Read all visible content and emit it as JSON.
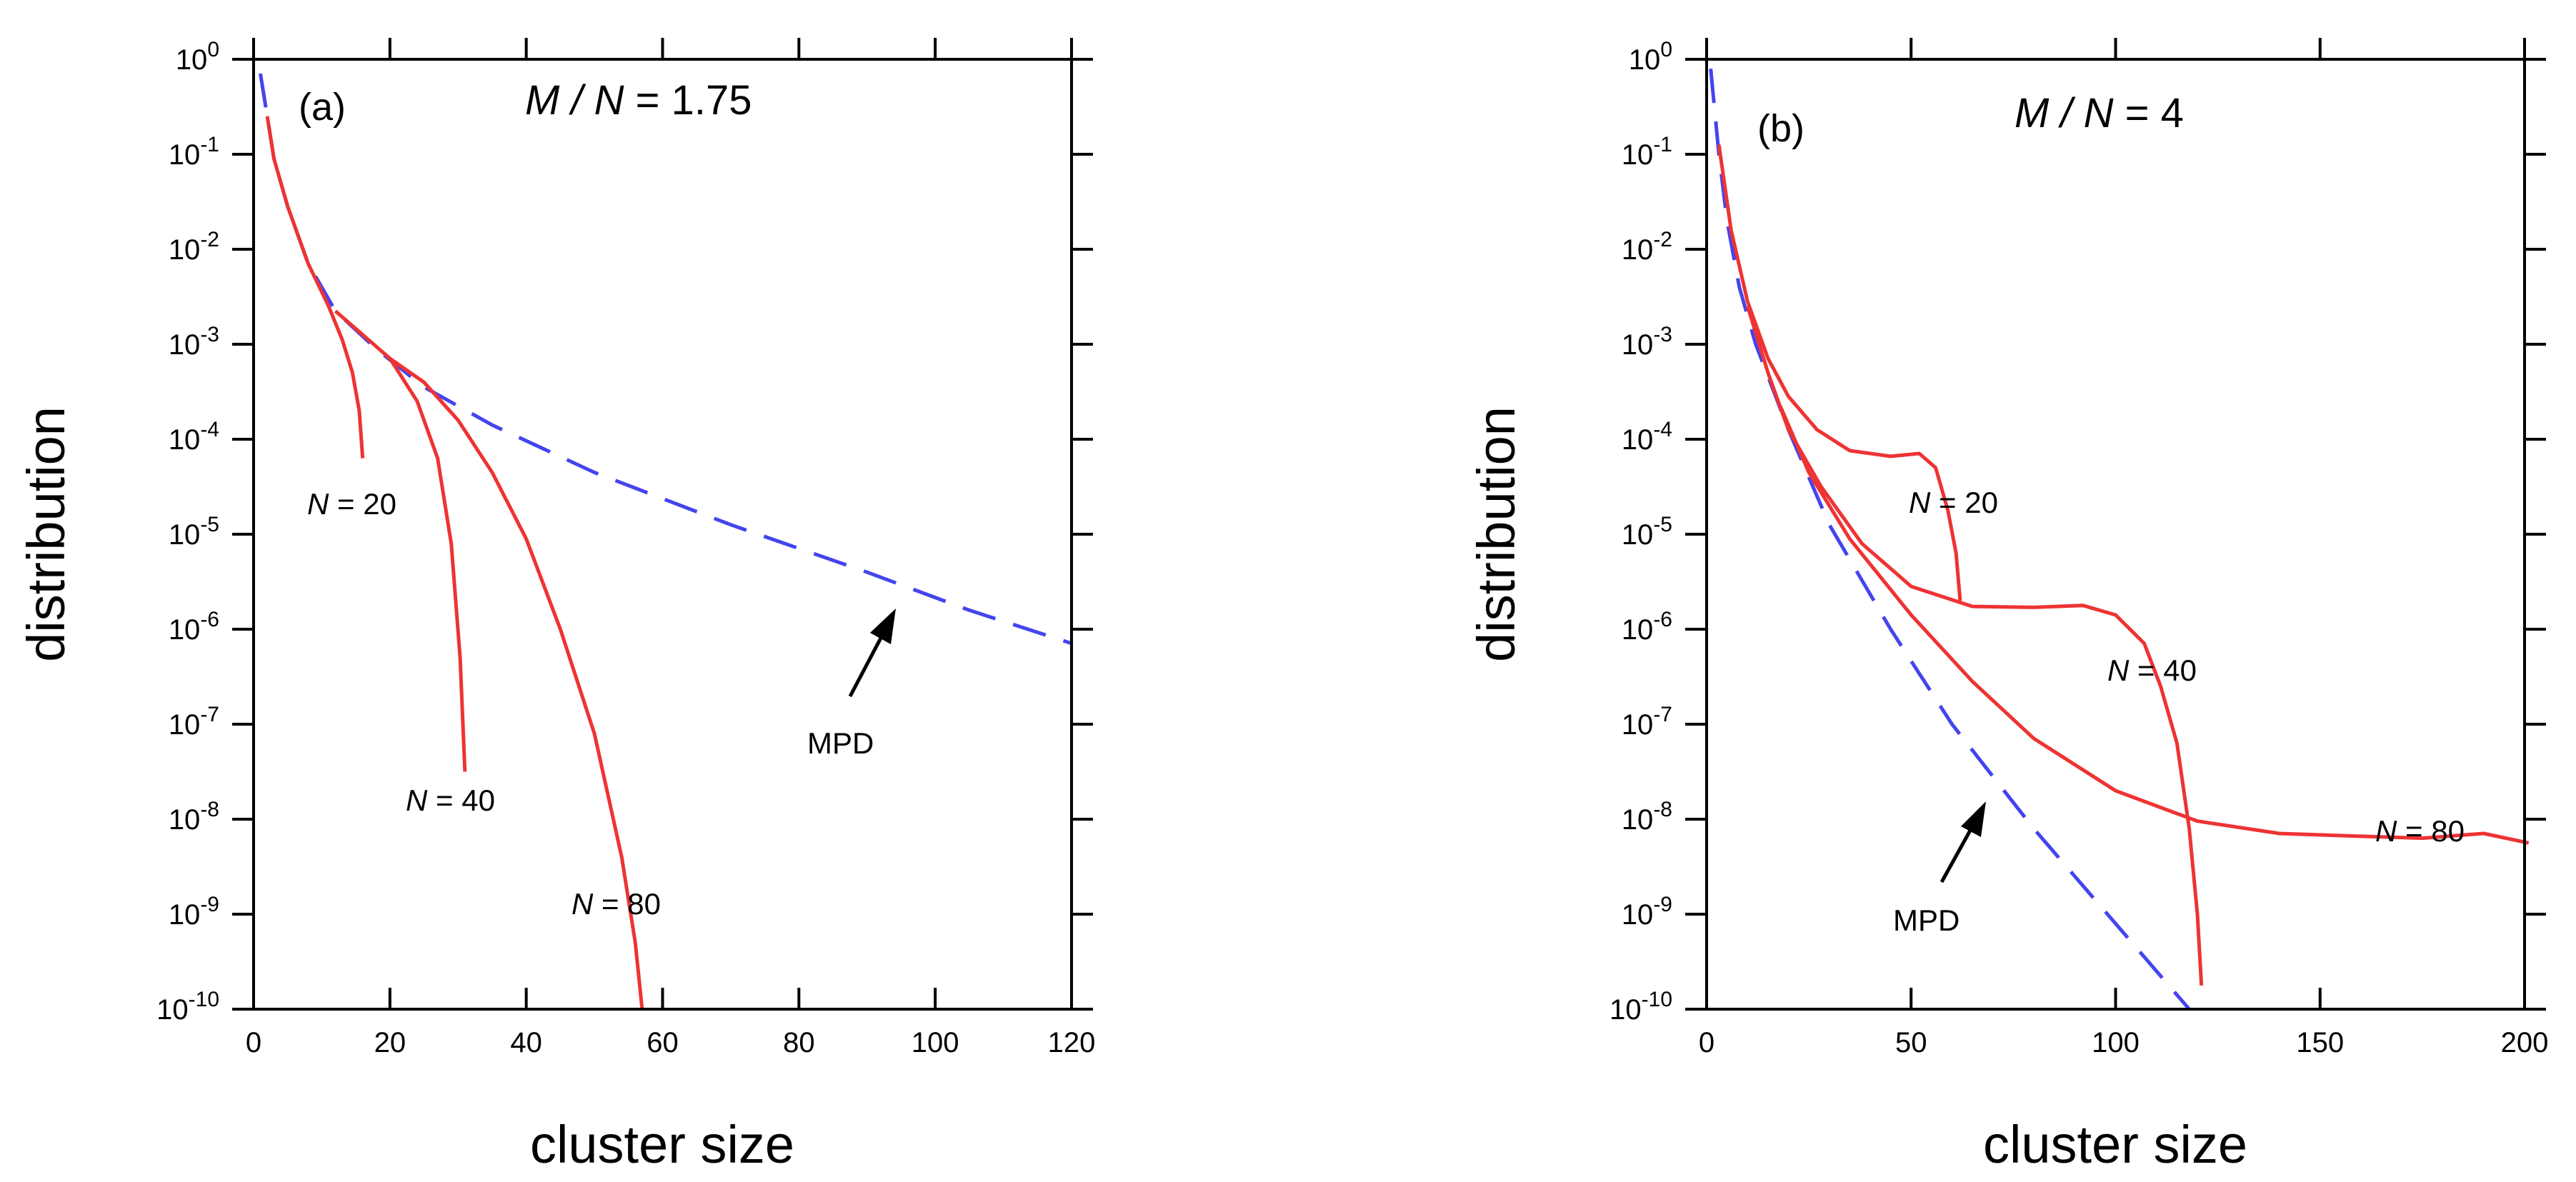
{
  "chart_data": [
    {
      "type": "line",
      "panel_label": "(a)",
      "title": {
        "var": "M / N",
        "eq": " = ",
        "value": "1.75"
      },
      "xlabel": "cluster size",
      "ylabel": "distribution",
      "xlim": [
        0,
        120
      ],
      "ylim_log10": [
        -10,
        0
      ],
      "y_scale": "log",
      "xticks": [
        0,
        20,
        40,
        60,
        80,
        100,
        120
      ],
      "xtick_labels": [
        "0",
        "20",
        "40",
        "60",
        "80",
        "100",
        "120"
      ],
      "yticks_exp": [
        0,
        -1,
        -2,
        -3,
        -4,
        -5,
        -6,
        -7,
        -8,
        -9,
        -10
      ],
      "ytick_labels": [
        {
          "base": "10",
          "exp": "0"
        },
        {
          "base": "10",
          "exp": "-1"
        },
        {
          "base": "10",
          "exp": "-2"
        },
        {
          "base": "10",
          "exp": "-3"
        },
        {
          "base": "10",
          "exp": "-4"
        },
        {
          "base": "10",
          "exp": "-5"
        },
        {
          "base": "10",
          "exp": "-6"
        },
        {
          "base": "10",
          "exp": "-7"
        },
        {
          "base": "10",
          "exp": "-8"
        },
        {
          "base": "10",
          "exp": "-9"
        },
        {
          "base": "10",
          "exp": "-10"
        }
      ],
      "series": [
        {
          "name": "MPD",
          "color": "#4444ee",
          "dashed": true,
          "points": [
            [
              1,
              -0.15
            ],
            [
              2,
              -0.6
            ],
            [
              3,
              -1.05
            ],
            [
              5,
              -1.55
            ],
            [
              8,
              -2.15
            ],
            [
              12,
              -2.65
            ],
            [
              18,
              -3.05
            ],
            [
              25,
              -3.45
            ],
            [
              35,
              -3.85
            ],
            [
              50,
              -4.35
            ],
            [
              70,
              -4.9
            ],
            [
              90,
              -5.4
            ],
            [
              105,
              -5.8
            ],
            [
              120,
              -6.15
            ]
          ]
        },
        {
          "name": "N = 20",
          "color": "#ee3333",
          "dashed": false,
          "points": [
            [
              2,
              -0.6
            ],
            [
              3,
              -1.05
            ],
            [
              5,
              -1.55
            ],
            [
              8,
              -2.15
            ],
            [
              11,
              -2.6
            ],
            [
              13,
              -2.95
            ],
            [
              14.5,
              -3.3
            ],
            [
              15.5,
              -3.7
            ],
            [
              16,
              -4.2
            ]
          ]
        },
        {
          "name": "N = 40",
          "color": "#ee3333",
          "dashed": false,
          "points": [
            [
              12,
              -2.65
            ],
            [
              16,
              -2.9
            ],
            [
              20,
              -3.15
            ],
            [
              24,
              -3.6
            ],
            [
              27,
              -4.2
            ],
            [
              29,
              -5.1
            ],
            [
              30.3,
              -6.3
            ],
            [
              31,
              -7.5
            ]
          ]
        },
        {
          "name": "N = 80",
          "color": "#ee3333",
          "dashed": false,
          "points": [
            [
              20,
              -3.15
            ],
            [
              25,
              -3.4
            ],
            [
              30,
              -3.8
            ],
            [
              35,
              -4.35
            ],
            [
              40,
              -5.05
            ],
            [
              45,
              -6.0
            ],
            [
              50,
              -7.1
            ],
            [
              54,
              -8.4
            ],
            [
              56,
              -9.3
            ],
            [
              57,
              -10.0
            ]
          ]
        }
      ],
      "annotations": [
        {
          "text_it": "N",
          "text_rm": " = 20"
        },
        {
          "text_it": "N",
          "text_rm": " = 40"
        },
        {
          "text_it": "N",
          "text_rm": " = 80"
        },
        {
          "text_rm": "MPD"
        }
      ]
    },
    {
      "type": "line",
      "panel_label": "(b)",
      "title": {
        "var": "M / N",
        "eq": " = ",
        "value": "4"
      },
      "xlabel": "cluster size",
      "ylabel": "distribution",
      "xlim": [
        0,
        200
      ],
      "ylim_log10": [
        -10,
        0
      ],
      "y_scale": "log",
      "xticks": [
        0,
        50,
        100,
        150,
        200
      ],
      "xtick_labels": [
        "0",
        "50",
        "100",
        "150",
        "200"
      ],
      "yticks_exp": [
        0,
        -1,
        -2,
        -3,
        -4,
        -5,
        -6,
        -7,
        -8,
        -9,
        -10
      ],
      "ytick_labels": [
        {
          "base": "10",
          "exp": "0"
        },
        {
          "base": "10",
          "exp": "-1"
        },
        {
          "base": "10",
          "exp": "-2"
        },
        {
          "base": "10",
          "exp": "-3"
        },
        {
          "base": "10",
          "exp": "-4"
        },
        {
          "base": "10",
          "exp": "-5"
        },
        {
          "base": "10",
          "exp": "-6"
        },
        {
          "base": "10",
          "exp": "-7"
        },
        {
          "base": "10",
          "exp": "-8"
        },
        {
          "base": "10",
          "exp": "-9"
        },
        {
          "base": "10",
          "exp": "-10"
        }
      ],
      "series": [
        {
          "name": "MPD",
          "color": "#4444ee",
          "dashed": true,
          "points": [
            [
              1,
              -0.1
            ],
            [
              3,
              -1.0
            ],
            [
              5,
              -1.7
            ],
            [
              8,
              -2.4
            ],
            [
              12,
              -3.0
            ],
            [
              20,
              -3.9
            ],
            [
              30,
              -4.9
            ],
            [
              45,
              -6.0
            ],
            [
              60,
              -7.0
            ],
            [
              80,
              -8.1
            ],
            [
              100,
              -9.1
            ],
            [
              118,
              -10.0
            ]
          ]
        },
        {
          "name": "N = 20",
          "color": "#ee3333",
          "dashed": false,
          "points": [
            [
              3,
              -0.9
            ],
            [
              6,
              -1.8
            ],
            [
              10,
              -2.55
            ],
            [
              15,
              -3.15
            ],
            [
              20,
              -3.55
            ],
            [
              27,
              -3.9
            ],
            [
              35,
              -4.12
            ],
            [
              45,
              -4.18
            ],
            [
              52,
              -4.15
            ],
            [
              56,
              -4.3
            ],
            [
              59,
              -4.75
            ],
            [
              61,
              -5.2
            ],
            [
              62,
              -5.7
            ]
          ]
        },
        {
          "name": "N = 40",
          "color": "#ee3333",
          "dashed": false,
          "points": [
            [
              10,
              -2.6
            ],
            [
              15,
              -3.3
            ],
            [
              20,
              -3.9
            ],
            [
              28,
              -4.5
            ],
            [
              38,
              -5.1
            ],
            [
              50,
              -5.55
            ],
            [
              65,
              -5.76
            ],
            [
              80,
              -5.77
            ],
            [
              92,
              -5.75
            ],
            [
              100,
              -5.85
            ],
            [
              107,
              -6.15
            ],
            [
              111,
              -6.6
            ],
            [
              115,
              -7.2
            ],
            [
              118,
              -8.1
            ],
            [
              120,
              -9.0
            ],
            [
              121,
              -9.75
            ]
          ]
        },
        {
          "name": "N = 80",
          "color": "#ee3333",
          "dashed": false,
          "points": [
            [
              18,
              -3.65
            ],
            [
              25,
              -4.35
            ],
            [
              35,
              -5.05
            ],
            [
              50,
              -5.85
            ],
            [
              65,
              -6.55
            ],
            [
              80,
              -7.15
            ],
            [
              100,
              -7.7
            ],
            [
              120,
              -8.02
            ],
            [
              140,
              -8.15
            ],
            [
              160,
              -8.18
            ],
            [
              175,
              -8.2
            ],
            [
              190,
              -8.15
            ],
            [
              201,
              -8.25
            ]
          ]
        }
      ],
      "annotations": [
        {
          "text_it": "N",
          "text_rm": " = 20"
        },
        {
          "text_it": "N",
          "text_rm": " = 40"
        },
        {
          "text_it": "N",
          "text_rm": " = 80"
        },
        {
          "text_rm": "MPD"
        }
      ]
    }
  ]
}
